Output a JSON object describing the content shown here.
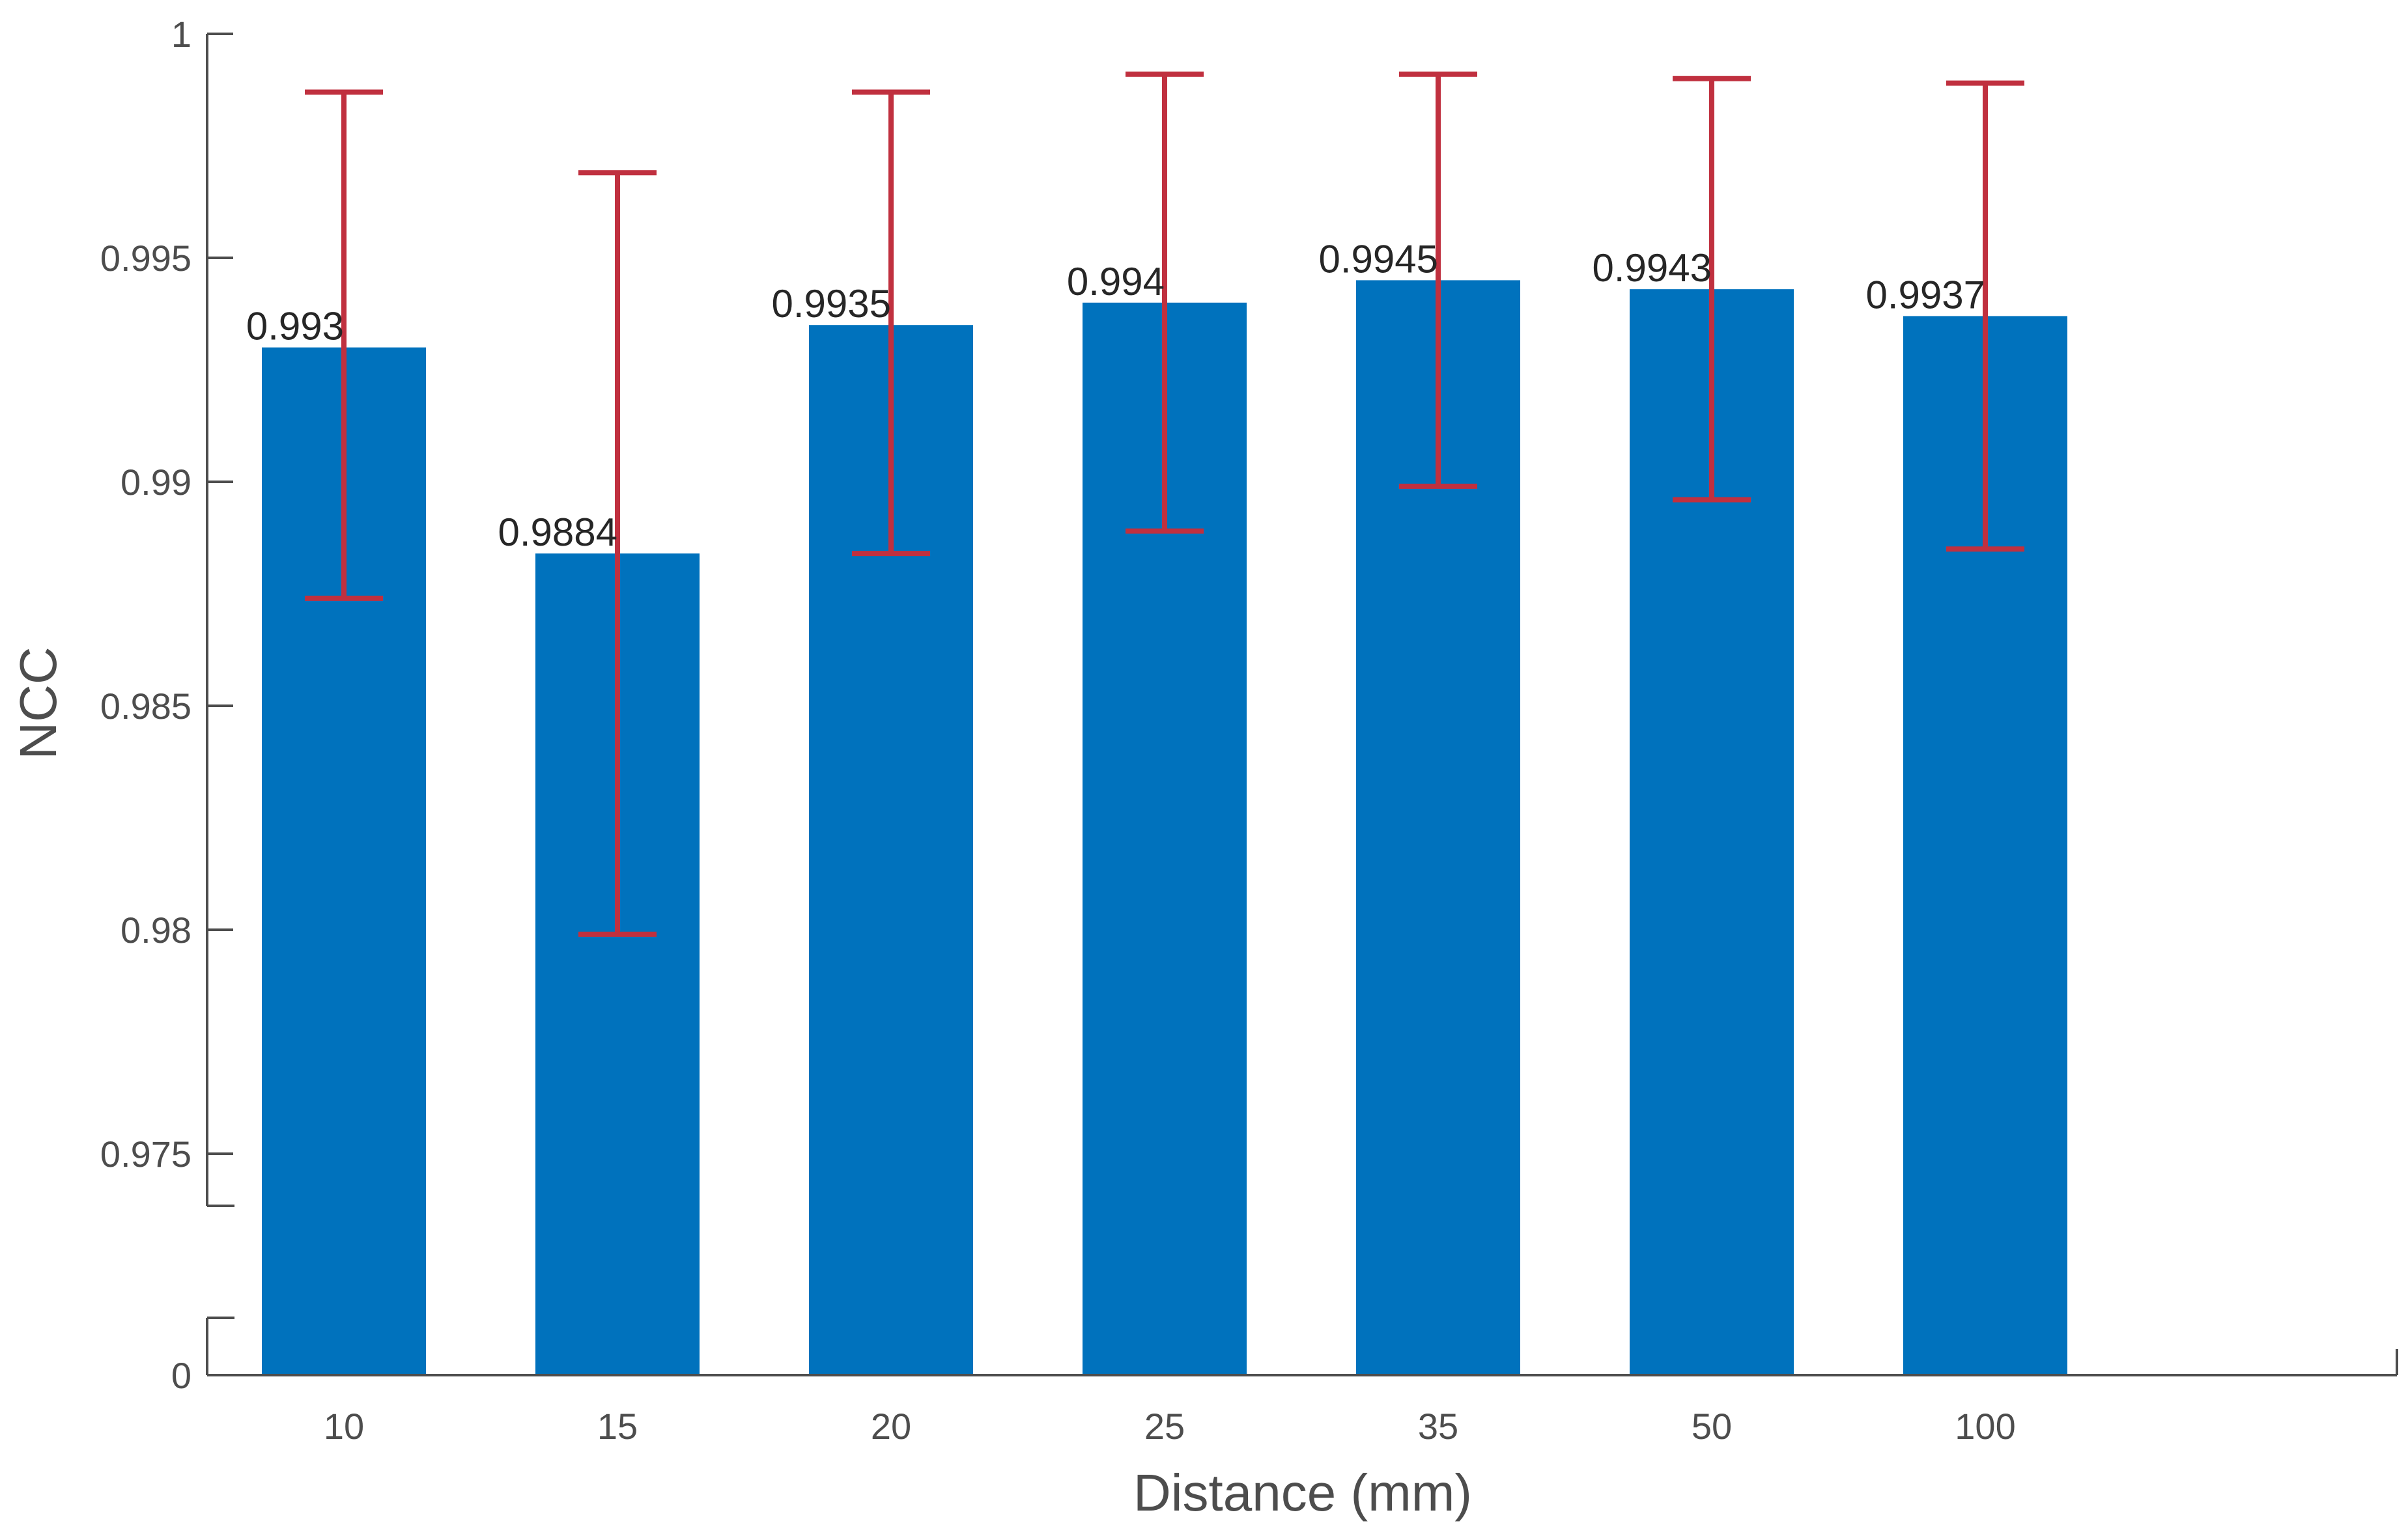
{
  "chart_data": {
    "type": "bar",
    "title": "",
    "xlabel": "Distance (mm)",
    "ylabel": "NCC",
    "categories": [
      "10",
      "15",
      "20",
      "25",
      "35",
      "50",
      "100"
    ],
    "values": [
      0.993,
      0.9884,
      0.9935,
      0.994,
      0.9945,
      0.9943,
      0.9937
    ],
    "value_labels": [
      "0.993",
      "0.9884",
      "0.9935",
      "0.994",
      "0.9945",
      "0.9943",
      "0.9937"
    ],
    "error_low": [
      0.9874,
      0.9799,
      0.9884,
      0.9889,
      0.9899,
      0.9896,
      0.9885
    ],
    "error_high": [
      0.9987,
      0.9969,
      0.9987,
      0.9991,
      0.9991,
      0.999,
      0.9989
    ],
    "ylim": [
      0.975,
      1
    ],
    "axis_break": {
      "from": 0,
      "to": 0.975
    },
    "yticks": [
      0,
      0.975,
      0.98,
      0.985,
      0.99,
      0.995,
      1
    ],
    "ytick_labels": [
      "0",
      "0.975",
      "0.98",
      "0.985",
      "0.99",
      "0.995",
      "1"
    ],
    "grid": false,
    "colors": {
      "bar": "#0072bd",
      "error_bar": "#c0303f",
      "axis": "#4d4d4d"
    }
  }
}
